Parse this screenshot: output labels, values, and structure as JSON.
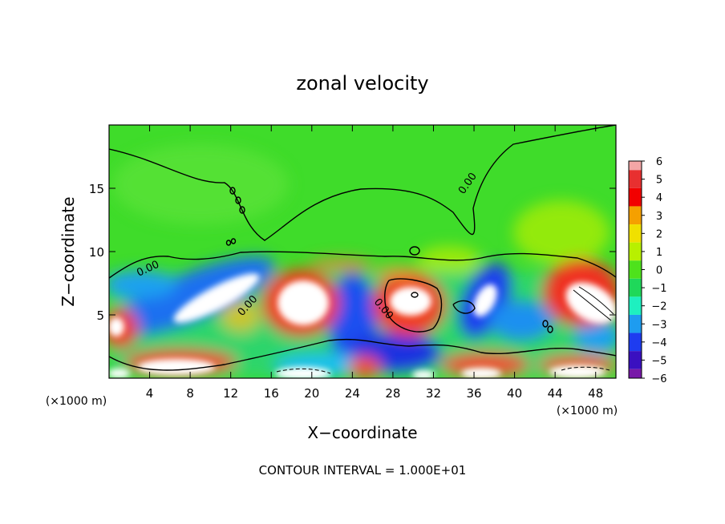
{
  "chart_data": {
    "type": "heatmap",
    "title": "zonal velocity",
    "xlabel": "X−coordinate",
    "ylabel": "Z−coordinate",
    "x_unit": "(×1000 m)",
    "y_unit": "(×1000 m)",
    "xlim": [
      0,
      50
    ],
    "ylim": [
      0,
      20
    ],
    "x_ticks": [
      4,
      8,
      12,
      16,
      20,
      24,
      28,
      32,
      36,
      40,
      44,
      48
    ],
    "y_ticks": [
      5,
      10,
      15
    ],
    "colorbar": {
      "ticks": [
        6,
        5,
        4,
        3,
        2,
        1,
        0,
        -1,
        -2,
        -3,
        -4,
        -5,
        -6
      ],
      "tick_labels": [
        "6",
        "5",
        "4",
        "3",
        "2",
        "1",
        "0",
        "−1",
        "−2",
        "−3",
        "−4",
        "−5",
        "−6"
      ],
      "colors": [
        "#f4a6a6",
        "#e83030",
        "#f20000",
        "#f5a000",
        "#f0e000",
        "#b8f000",
        "#4ee21c",
        "#1fd85a",
        "#1ef0c0",
        "#1e9cf0",
        "#1e3cf0",
        "#3a10c0",
        "#7818a8"
      ]
    },
    "contour_label": "0.00",
    "contour_interval_text": "CONTOUR INTERVAL = 1.000E+01"
  }
}
